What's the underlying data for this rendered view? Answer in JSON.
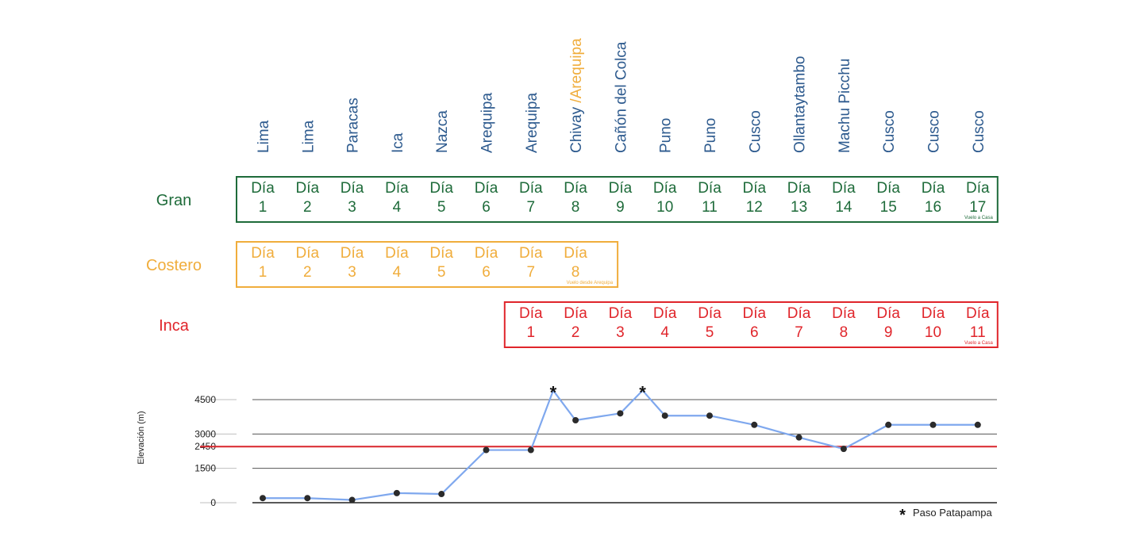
{
  "colors": {
    "gran": "#1e6b3a",
    "costero": "#f0ad3c",
    "inca": "#e0252b",
    "city": "#2d5a8e",
    "line": "#7fa8ee",
    "point": "#2b2b2b",
    "threshold": "#d9262c"
  },
  "cities": [
    "Lima",
    "Lima",
    "Paracas",
    "Ica",
    "Nazca",
    "Arequipa",
    "Arequipa",
    "Chivay",
    "Cañón del Colca",
    "Puno",
    "Puno",
    "Cusco",
    "Ollantaytambo",
    "Machu Picchu",
    "Cusco",
    "Cusco",
    "Cusco"
  ],
  "city_alt": "/Arequipa",
  "day_word": "Día",
  "routes": [
    {
      "label": "Gran",
      "color_key": "gran",
      "start_col": 0,
      "days": 17,
      "note": "Vuelo a Casa"
    },
    {
      "label": "Costero",
      "color_key": "costero",
      "start_col": 0,
      "days": 8,
      "note": "Vuelo desde Arequipa"
    },
    {
      "label": "Inca",
      "color_key": "inca",
      "start_col": 6,
      "days": 11,
      "note": "Vuelo a Casa"
    }
  ],
  "chart_data": {
    "type": "line",
    "ylabel": "Elevación (m)",
    "yticks": [
      0,
      1500,
      2450,
      3000,
      4500
    ],
    "ylim": [
      0,
      4500
    ],
    "threshold": 2450,
    "points": [
      {
        "x": 1,
        "y": 200
      },
      {
        "x": 2,
        "y": 200
      },
      {
        "x": 3,
        "y": 120
      },
      {
        "x": 4,
        "y": 420
      },
      {
        "x": 5,
        "y": 380
      },
      {
        "x": 6,
        "y": 2300
      },
      {
        "x": 7,
        "y": 2300
      },
      {
        "x": 7.5,
        "y": 4900,
        "marker": "star"
      },
      {
        "x": 8,
        "y": 3600
      },
      {
        "x": 9,
        "y": 3900
      },
      {
        "x": 9.5,
        "y": 4900,
        "marker": "star"
      },
      {
        "x": 10,
        "y": 3800
      },
      {
        "x": 11,
        "y": 3800
      },
      {
        "x": 12,
        "y": 3400
      },
      {
        "x": 13,
        "y": 2850
      },
      {
        "x": 14,
        "y": 2350
      },
      {
        "x": 15,
        "y": 3400
      },
      {
        "x": 16,
        "y": 3400
      },
      {
        "x": 17,
        "y": 3400
      }
    ],
    "legend": {
      "symbol": "*",
      "label": "Paso Patapampa"
    }
  }
}
